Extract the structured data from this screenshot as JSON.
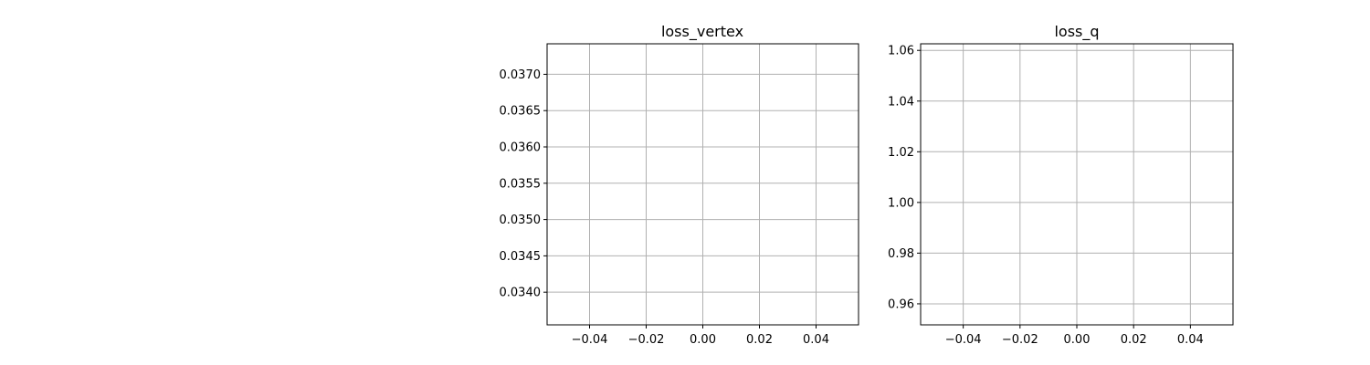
{
  "chart_data": [
    {
      "type": "line",
      "title": "loss_vertex",
      "xlabel": "",
      "ylabel": "",
      "xlim": [
        -0.055,
        0.055
      ],
      "ylim": [
        0.03355,
        0.03742
      ],
      "xticks": [
        -0.04,
        -0.02,
        0.0,
        0.02,
        0.04
      ],
      "xtick_labels": [
        "−0.04",
        "−0.02",
        "0.00",
        "0.02",
        "0.04"
      ],
      "yticks": [
        0.034,
        0.0345,
        0.035,
        0.0355,
        0.036,
        0.0365,
        0.037
      ],
      "ytick_labels": [
        "0.0340",
        "0.0345",
        "0.0350",
        "0.0355",
        "0.0360",
        "0.0365",
        "0.0370"
      ],
      "grid": true,
      "series": [
        {
          "x": [],
          "y": []
        }
      ]
    },
    {
      "type": "line",
      "title": "loss_q",
      "xlabel": "",
      "ylabel": "",
      "xlim": [
        -0.055,
        0.055
      ],
      "ylim": [
        0.9517,
        1.0626
      ],
      "xticks": [
        -0.04,
        -0.02,
        0.0,
        0.02,
        0.04
      ],
      "xtick_labels": [
        "−0.04",
        "−0.02",
        "0.00",
        "0.02",
        "0.04"
      ],
      "yticks": [
        0.96,
        0.98,
        1.0,
        1.02,
        1.04,
        1.06
      ],
      "ytick_labels": [
        "0.96",
        "0.98",
        "1.00",
        "1.02",
        "1.04",
        "1.06"
      ],
      "grid": true,
      "series": [
        {
          "x": [],
          "y": []
        }
      ]
    }
  ],
  "colors": {
    "grid": "#b0b0b0",
    "axes": "#000000",
    "background": "#ffffff"
  }
}
